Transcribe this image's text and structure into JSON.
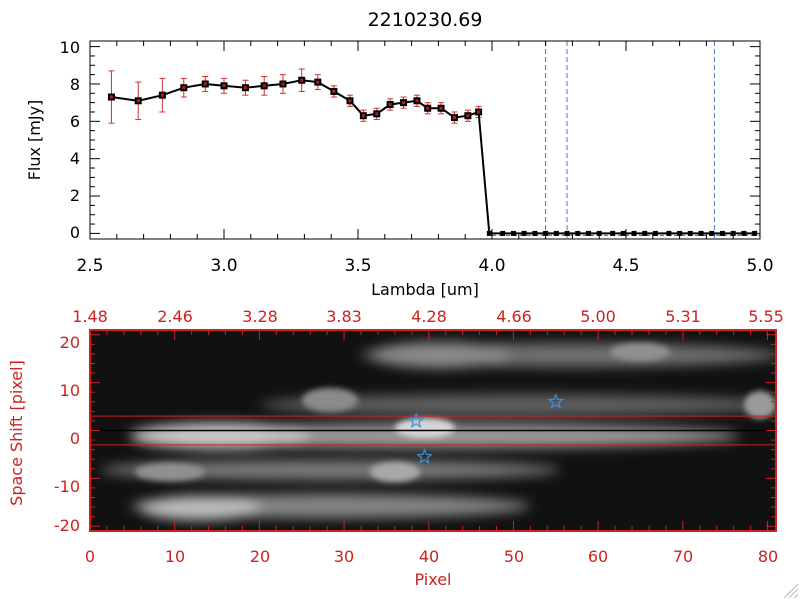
{
  "chart_data": [
    {
      "type": "line",
      "title": "2210230.69",
      "xlabel": "Lambda [um]",
      "ylabel": "Flux [mJy]",
      "xlim": [
        2.5,
        5.0
      ],
      "ylim": [
        -0.3,
        10.3
      ],
      "xticks": [
        2.5,
        3.0,
        3.5,
        4.0,
        4.5,
        5.0
      ],
      "xtick_labels": [
        "2.5",
        "3.0",
        "3.5",
        "4.0",
        "4.5",
        "5.0"
      ],
      "yticks": [
        0,
        2,
        4,
        6,
        8,
        10
      ],
      "ytick_labels": [
        "0",
        "2",
        "4",
        "6",
        "8",
        "10"
      ],
      "series": [
        {
          "name": "flux",
          "x": [
            2.58,
            2.68,
            2.77,
            2.85,
            2.93,
            3.0,
            3.08,
            3.15,
            3.22,
            3.29,
            3.35,
            3.41,
            3.47,
            3.52,
            3.57,
            3.62,
            3.67,
            3.72,
            3.76,
            3.81,
            3.86,
            3.91,
            3.95,
            3.99,
            4.04,
            4.08,
            4.12,
            4.16,
            4.2,
            4.24,
            4.28,
            4.32,
            4.36,
            4.4,
            4.45,
            4.49,
            4.53,
            4.57,
            4.61,
            4.66,
            4.7,
            4.74,
            4.78,
            4.82,
            4.86,
            4.9,
            4.94,
            4.98
          ],
          "y": [
            7.3,
            7.1,
            7.4,
            7.8,
            8.0,
            7.9,
            7.8,
            7.9,
            8.0,
            8.2,
            8.1,
            7.6,
            7.1,
            6.3,
            6.4,
            6.9,
            7.0,
            7.1,
            6.7,
            6.7,
            6.2,
            6.3,
            6.5,
            0.0,
            0.0,
            0.0,
            0.0,
            0.0,
            0.0,
            0.0,
            0.0,
            0.0,
            0.0,
            0.0,
            0.0,
            0.0,
            0.0,
            0.0,
            0.0,
            0.0,
            0.0,
            0.0,
            0.0,
            0.0,
            0.0,
            0.0,
            0.0,
            0.0
          ],
          "yerr": [
            1.4,
            1.0,
            0.9,
            0.5,
            0.4,
            0.4,
            0.4,
            0.5,
            0.5,
            0.6,
            0.4,
            0.3,
            0.3,
            0.3,
            0.3,
            0.3,
            0.3,
            0.3,
            0.3,
            0.3,
            0.3,
            0.3,
            0.3,
            0.0,
            0.0,
            0.0,
            0.0,
            0.0,
            0.0,
            0.0,
            0.0,
            0.0,
            0.0,
            0.0,
            0.0,
            0.0,
            0.0,
            0.0,
            0.0,
            0.0,
            0.0,
            0.0,
            0.0,
            0.0,
            0.0,
            0.0,
            0.0,
            0.0
          ]
        }
      ],
      "vlines": [
        4.2,
        4.28,
        4.83
      ],
      "vline_color": "#3a7fd0",
      "errorbar_color": "#d03030",
      "marker_color": "#000000"
    },
    {
      "type": "heatmap",
      "xlabel": "Pixel",
      "ylabel": "Space Shift [pixel]",
      "xlim": [
        0,
        81
      ],
      "ylim": [
        -21,
        21
      ],
      "xticks": [
        0,
        10,
        20,
        30,
        40,
        50,
        60,
        70,
        80
      ],
      "xtick_labels": [
        "0",
        "10",
        "20",
        "30",
        "40",
        "50",
        "60",
        "70",
        "80"
      ],
      "yticks": [
        -20,
        -10,
        0,
        10,
        20
      ],
      "ytick_labels": [
        "-20",
        "-10",
        "0",
        "10",
        "20"
      ],
      "top_axis_positions": [
        0,
        10,
        20,
        30,
        40,
        50,
        60,
        70,
        80
      ],
      "top_axis_labels": [
        "1.48",
        "2.46",
        "3.28",
        "3.83",
        "4.28",
        "4.66",
        "5.00",
        "5.31",
        "5.55"
      ],
      "hlines": [
        3,
        -3
      ],
      "centerline": 0,
      "stars": [
        {
          "x": 38.5,
          "y": 2
        },
        {
          "x": 55,
          "y": 6
        },
        {
          "x": 39.5,
          "y": -5.5
        }
      ],
      "axis_color": "#cc2222",
      "star_color": "#3a8fe0"
    }
  ]
}
